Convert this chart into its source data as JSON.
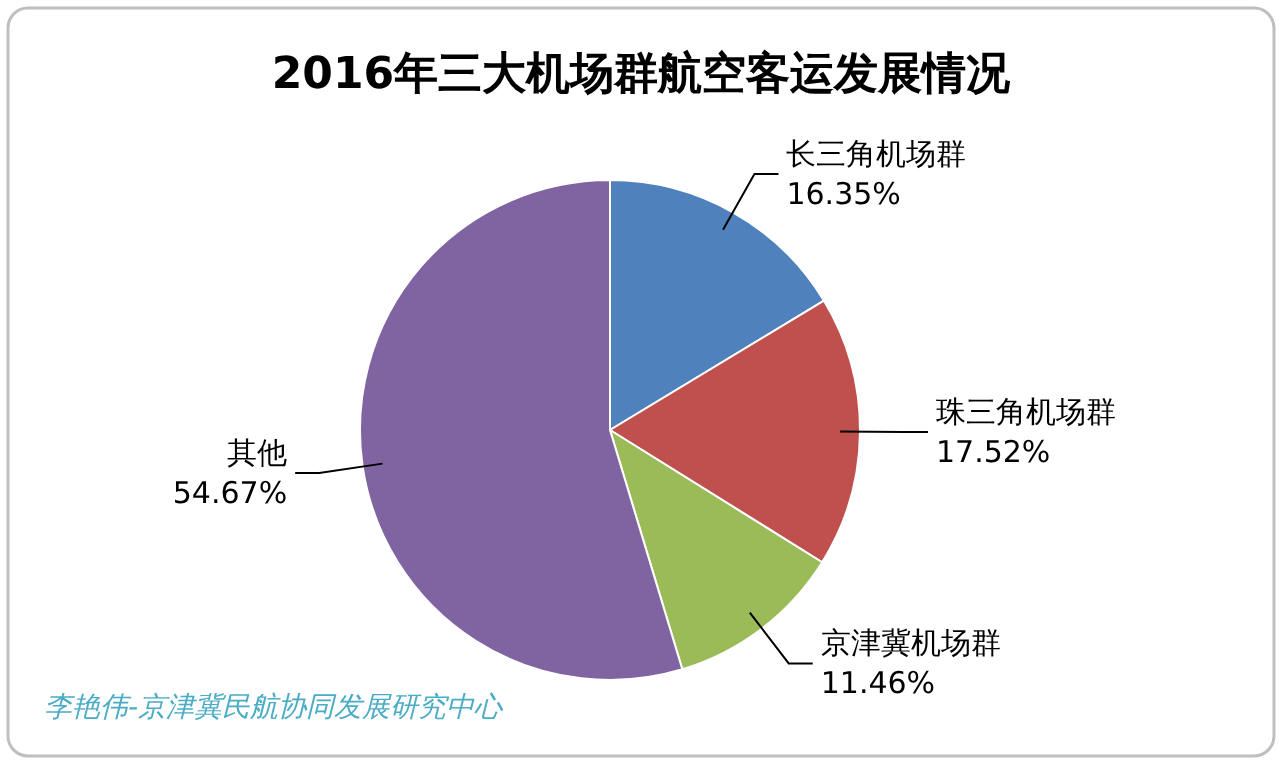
{
  "chart_data": {
    "type": "pie",
    "title": "2016年三大机场群航空客运发展情况",
    "categories": [
      "长三角机场群",
      "珠三角机场群",
      "京津冀机场群",
      "其他"
    ],
    "values": [
      16.35,
      17.52,
      11.46,
      54.67
    ],
    "colors": [
      "#4f81bd",
      "#c0504d",
      "#9bbb59",
      "#8064a2"
    ],
    "value_labels": [
      "16.35%",
      "17.52%",
      "11.46%",
      "54.67%"
    ],
    "annotations": [
      "李艳伟-京津冀民航协同发展研究中心"
    ]
  }
}
